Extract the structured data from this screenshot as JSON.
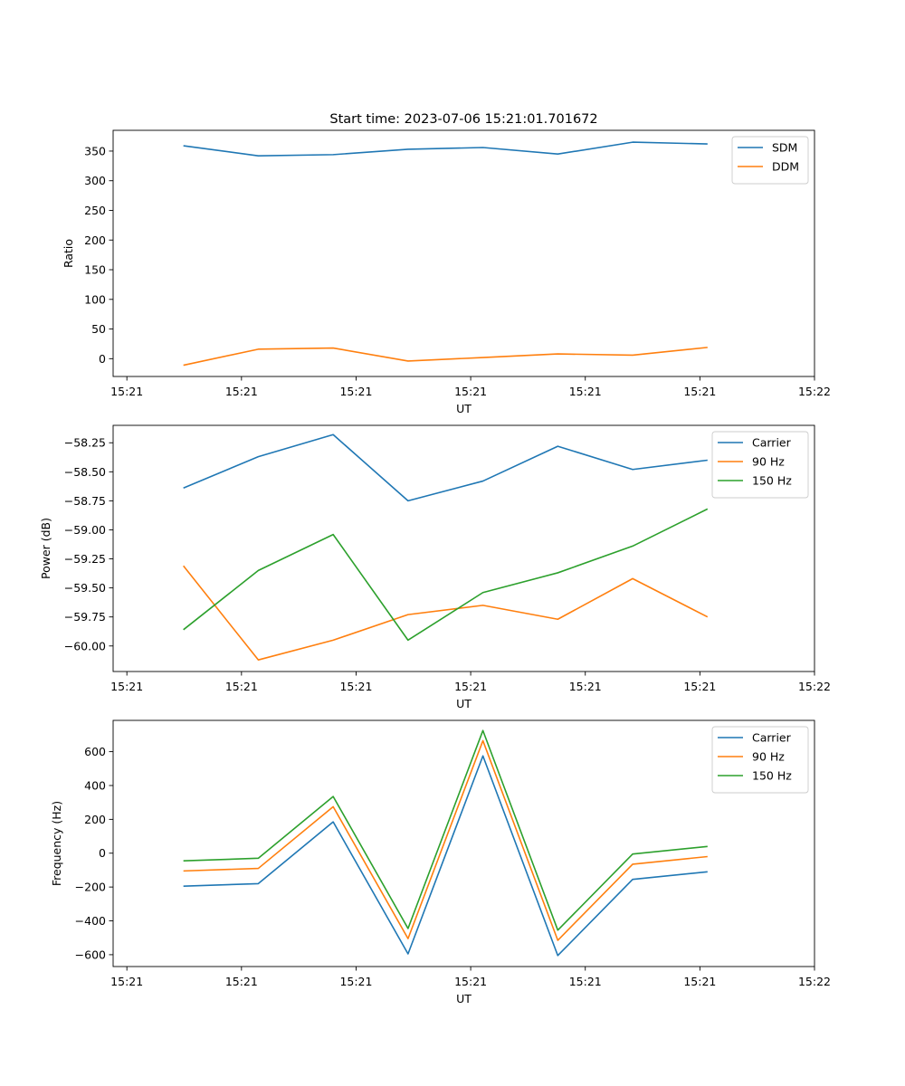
{
  "figure_title": "Start time: 2023-07-06 15:21:01.701672",
  "chart_data": [
    {
      "type": "line",
      "title": "Start time: 2023-07-06 15:21:01.701672",
      "xlabel": "UT",
      "ylabel": "Ratio",
      "xlim": [
        -0.18,
        9.0
      ],
      "ylim": [
        -30,
        385
      ],
      "xticks": [
        {
          "value": 0,
          "label": "15:21"
        },
        {
          "value": 1.5,
          "label": "15:21"
        },
        {
          "value": 3,
          "label": "15:21"
        },
        {
          "value": 4.5,
          "label": "15:21"
        },
        {
          "value": 6,
          "label": "15:21"
        },
        {
          "value": 7.5,
          "label": "15:21"
        },
        {
          "value": 9,
          "label": "15:22"
        }
      ],
      "yticks": [
        {
          "value": 0,
          "label": "0"
        },
        {
          "value": 50,
          "label": "50"
        },
        {
          "value": 100,
          "label": "100"
        },
        {
          "value": 150,
          "label": "150"
        },
        {
          "value": 200,
          "label": "200"
        },
        {
          "value": 250,
          "label": "250"
        },
        {
          "value": 300,
          "label": "300"
        },
        {
          "value": 350,
          "label": "350"
        }
      ],
      "x": [
        0.74,
        1.72,
        2.7,
        3.68,
        4.66,
        5.64,
        6.62,
        7.6
      ],
      "legend_position": "upper right",
      "series": [
        {
          "name": "SDM",
          "color": "#1f77b4",
          "values": [
            359,
            342,
            344,
            353,
            356,
            345,
            365,
            362
          ]
        },
        {
          "name": "DDM",
          "color": "#ff7f0e",
          "values": [
            -11,
            16,
            18,
            -4,
            2,
            8,
            6,
            19
          ]
        }
      ]
    },
    {
      "type": "line",
      "title": "",
      "xlabel": "UT",
      "ylabel": "Power (dB)",
      "xlim": [
        -0.18,
        9.0
      ],
      "ylim": [
        -60.22,
        -58.1
      ],
      "xticks": [
        {
          "value": 0,
          "label": "15:21"
        },
        {
          "value": 1.5,
          "label": "15:21"
        },
        {
          "value": 3,
          "label": "15:21"
        },
        {
          "value": 4.5,
          "label": "15:21"
        },
        {
          "value": 6,
          "label": "15:21"
        },
        {
          "value": 7.5,
          "label": "15:21"
        },
        {
          "value": 9,
          "label": "15:22"
        }
      ],
      "yticks": [
        {
          "value": -60.0,
          "label": "−60.00"
        },
        {
          "value": -59.75,
          "label": "−59.75"
        },
        {
          "value": -59.5,
          "label": "−59.50"
        },
        {
          "value": -59.25,
          "label": "−59.25"
        },
        {
          "value": -59.0,
          "label": "−59.00"
        },
        {
          "value": -58.75,
          "label": "−58.75"
        },
        {
          "value": -58.5,
          "label": "−58.50"
        },
        {
          "value": -58.25,
          "label": "−58.25"
        }
      ],
      "x": [
        0.74,
        1.72,
        2.7,
        3.68,
        4.66,
        5.64,
        6.62,
        7.6
      ],
      "legend_position": "upper right",
      "series": [
        {
          "name": "Carrier",
          "color": "#1f77b4",
          "values": [
            -58.64,
            -58.37,
            -58.18,
            -58.75,
            -58.58,
            -58.28,
            -58.48,
            -58.4
          ]
        },
        {
          "name": "90 Hz",
          "color": "#ff7f0e",
          "values": [
            -59.31,
            -60.12,
            -59.95,
            -59.73,
            -59.65,
            -59.77,
            -59.42,
            -59.75
          ]
        },
        {
          "name": "150 Hz",
          "color": "#2ca02c",
          "values": [
            -59.86,
            -59.35,
            -59.04,
            -59.95,
            -59.54,
            -59.37,
            -59.14,
            -58.82
          ]
        }
      ]
    },
    {
      "type": "line",
      "title": "",
      "xlabel": "UT",
      "ylabel": "Frequency (Hz)",
      "xlim": [
        -0.18,
        9.0
      ],
      "ylim": [
        -670,
        785
      ],
      "xticks": [
        {
          "value": 0,
          "label": "15:21"
        },
        {
          "value": 1.5,
          "label": "15:21"
        },
        {
          "value": 3,
          "label": "15:21"
        },
        {
          "value": 4.5,
          "label": "15:21"
        },
        {
          "value": 6,
          "label": "15:21"
        },
        {
          "value": 7.5,
          "label": "15:21"
        },
        {
          "value": 9,
          "label": "15:22"
        }
      ],
      "yticks": [
        {
          "value": -600,
          "label": "−600"
        },
        {
          "value": -400,
          "label": "−400"
        },
        {
          "value": -200,
          "label": "−200"
        },
        {
          "value": 0,
          "label": "0"
        },
        {
          "value": 200,
          "label": "200"
        },
        {
          "value": 400,
          "label": "400"
        },
        {
          "value": 600,
          "label": "600"
        }
      ],
      "x": [
        0.74,
        1.72,
        2.7,
        3.68,
        4.66,
        5.64,
        6.62,
        7.6
      ],
      "legend_position": "upper right",
      "series": [
        {
          "name": "Carrier",
          "color": "#1f77b4",
          "values": [
            -195,
            -180,
            185,
            -595,
            575,
            -605,
            -155,
            -110
          ]
        },
        {
          "name": "90 Hz",
          "color": "#ff7f0e",
          "values": [
            -105,
            -90,
            275,
            -505,
            665,
            -515,
            -65,
            -20
          ]
        },
        {
          "name": "150 Hz",
          "color": "#2ca02c",
          "values": [
            -45,
            -30,
            335,
            -445,
            725,
            -455,
            -5,
            40
          ]
        }
      ]
    }
  ]
}
